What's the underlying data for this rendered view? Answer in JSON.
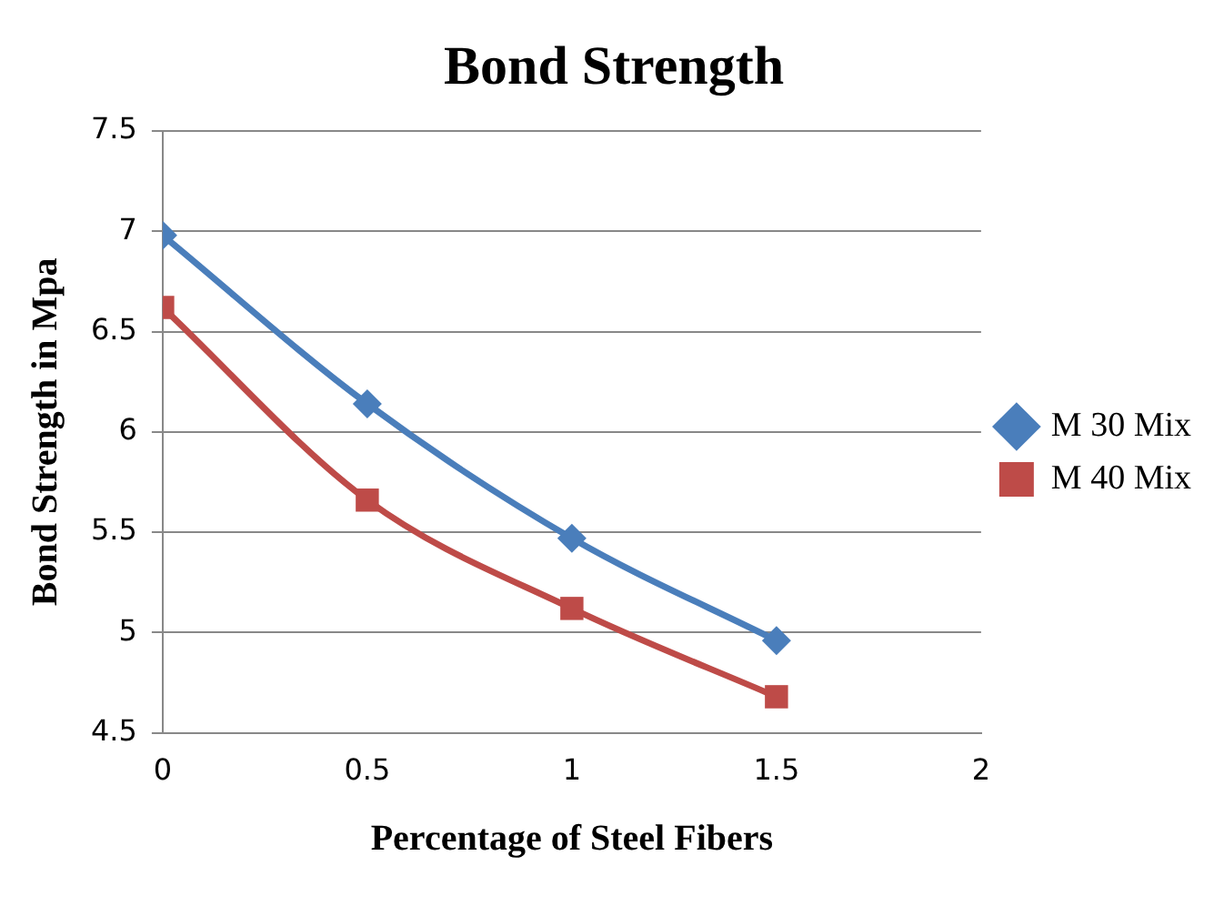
{
  "chart_data": {
    "type": "line",
    "title": "Bond Strength",
    "xlabel": "Percentage of Steel Fibers",
    "ylabel": "Bond Strength in Mpa",
    "x": [
      0,
      0.5,
      1,
      1.5
    ],
    "series": [
      {
        "name": "M 30 Mix",
        "color": "#4a7ebb",
        "values": [
          6.98,
          6.14,
          5.47,
          4.96
        ],
        "marker": "diamond"
      },
      {
        "name": "M 40 Mix",
        "color": "#be4b48",
        "values": [
          6.62,
          5.66,
          5.12,
          4.68
        ],
        "marker": "square"
      }
    ],
    "xlim": [
      0,
      2
    ],
    "xticks": [
      0,
      0.5,
      1,
      1.5,
      2
    ],
    "ylim": [
      4.5,
      7.5
    ],
    "yticks": [
      4.5,
      5,
      5.5,
      6,
      6.5,
      7,
      7.5
    ],
    "grid": "y",
    "legend": "right",
    "line_style": "solid"
  }
}
